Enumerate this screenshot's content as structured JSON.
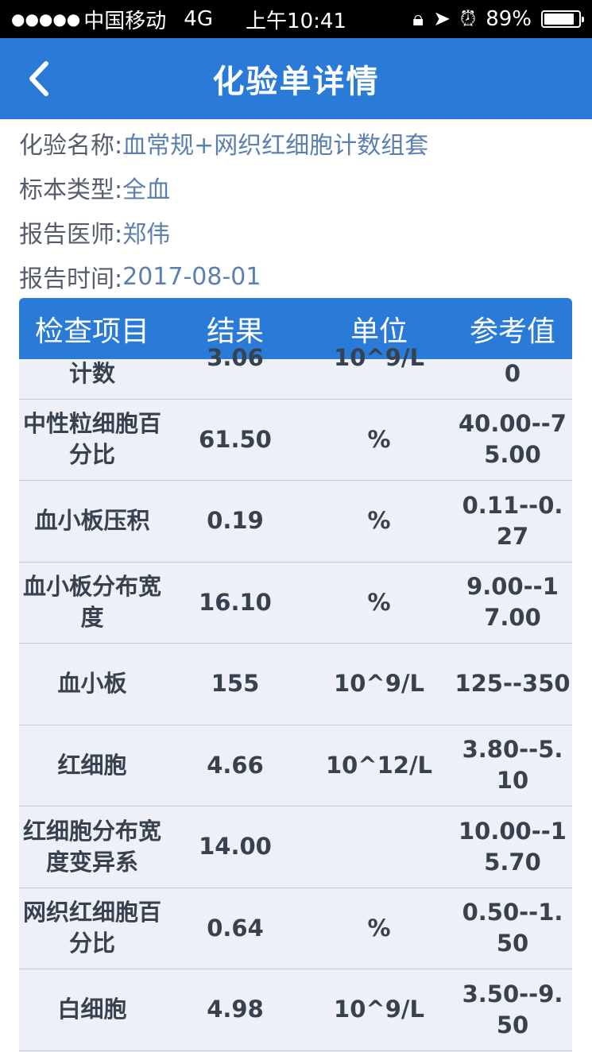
{
  "status_bar": {
    "signal": "●●●●●",
    "carrier": "中国移动",
    "network": "4G",
    "time": "上午10:41",
    "battery": "89%",
    "battery_level": 0.89,
    "icons": [
      "orientation-lock-icon",
      "location-icon",
      "alarm-icon",
      "battery-icon"
    ]
  },
  "nav": {
    "title": "化验单详情",
    "back_icon": "chevron-left-icon"
  },
  "info": [
    {
      "label": "化验名称:",
      "value": "血常规+网织红细胞计数组套"
    },
    {
      "label": "标本类型:",
      "value": "全血"
    },
    {
      "label": "报告医师:",
      "value": "郑伟"
    },
    {
      "label": "报告时间:",
      "value": "2017-08-01"
    }
  ],
  "table": {
    "headers": [
      "检查项目",
      "结果",
      "单位",
      "参考值"
    ],
    "rows": [
      {
        "name": "计数",
        "result": "3.06",
        "unit": "10^9/L",
        "ref": "0"
      },
      {
        "name": "中性粒细胞百分比",
        "result": "61.50",
        "unit": "%",
        "ref": "40.00--75.00"
      },
      {
        "name": "血小板压积",
        "result": "0.19",
        "unit": "%",
        "ref": "0.11--0.27"
      },
      {
        "name": "血小板分布宽度",
        "result": "16.10",
        "unit": "%",
        "ref": "9.00--17.00"
      },
      {
        "name": "血小板",
        "result": "155",
        "unit": "10^9/L",
        "ref": "125--350"
      },
      {
        "name": "红细胞",
        "result": "4.66",
        "unit": "10^12/L",
        "ref": "3.80--5.10"
      },
      {
        "name": "红细胞分布宽度变异系",
        "result": "14.00",
        "unit": "",
        "ref": "10.00--15.70"
      },
      {
        "name": "网织红细胞百分比",
        "result": "0.64",
        "unit": "%",
        "ref": "0.50--1.50"
      },
      {
        "name": "白细胞",
        "result": "4.98",
        "unit": "10^9/L",
        "ref": "3.50--9.50"
      }
    ]
  },
  "colors": {
    "primary": "#2a7ad8",
    "row_bg": "#edf1f7",
    "value_text": "#5b7fae"
  }
}
